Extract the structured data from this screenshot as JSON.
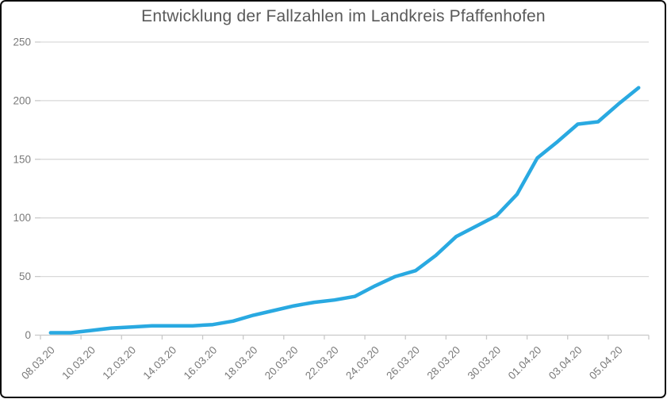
{
  "title": "Entwicklung der Fallzahlen im Landkreis Pfaffenhofen",
  "colors": {
    "line": "#29a9e1",
    "title_text": "#595959",
    "axis_text": "#7a7a7a",
    "gridline": "#d9d9d9",
    "axis_line": "#c9c9c9",
    "background": "#ffffff",
    "border": "#0d0d0d"
  },
  "chart_data": {
    "type": "line",
    "title": "Entwicklung der Fallzahlen im Landkreis Pfaffenhofen",
    "xlabel": "",
    "ylabel": "",
    "x": [
      "08.03.20",
      "09.03.20",
      "10.03.20",
      "11.03.20",
      "12.03.20",
      "13.03.20",
      "14.03.20",
      "15.03.20",
      "16.03.20",
      "17.03.20",
      "18.03.20",
      "19.03.20",
      "20.03.20",
      "21.03.20",
      "22.03.20",
      "23.03.20",
      "24.03.20",
      "25.03.20",
      "26.03.20",
      "27.03.20",
      "28.03.20",
      "29.03.20",
      "30.03.20",
      "31.03.20",
      "01.04.20",
      "02.04.20",
      "03.04.20",
      "04.04.20",
      "05.04.20",
      "06.04.20"
    ],
    "values": [
      2,
      2,
      4,
      6,
      7,
      8,
      8,
      8,
      9,
      12,
      17,
      21,
      25,
      28,
      30,
      33,
      42,
      50,
      55,
      68,
      84,
      93,
      102,
      120,
      151,
      165,
      180,
      182,
      197,
      211
    ],
    "series_name": "Fallzahlen",
    "ylim": [
      0,
      250
    ],
    "yticks": [
      0,
      50,
      100,
      150,
      200,
      250
    ],
    "xtick_labels": [
      "08.03.20",
      "10.03.20",
      "12.03.20",
      "14.03.20",
      "16.03.20",
      "18.03.20",
      "20.03.20",
      "22.03.20",
      "24.03.20",
      "26.03.20",
      "28.03.20",
      "30.03.20",
      "01.04.20",
      "03.04.20",
      "05.04.20"
    ],
    "x_label_interval": 2,
    "grid": "horizontal",
    "legend": "none"
  }
}
